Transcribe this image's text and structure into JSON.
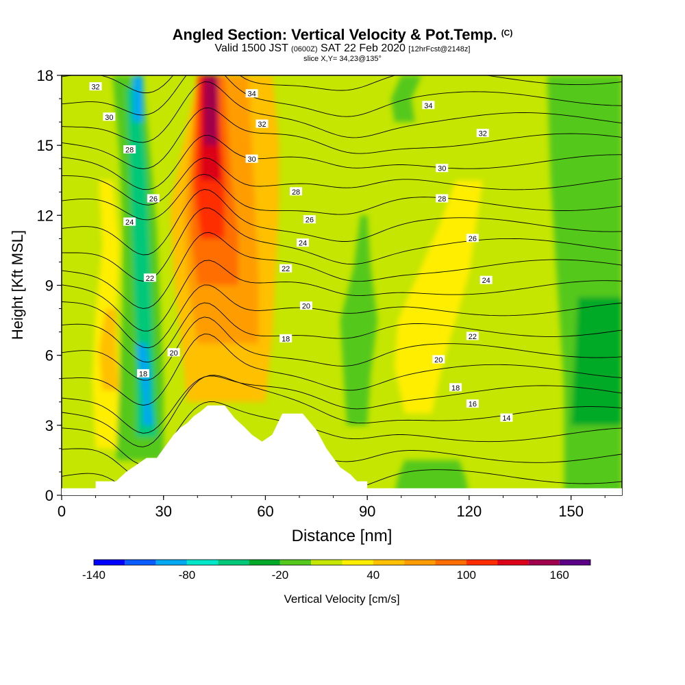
{
  "header": {
    "title": "Angled Section: Vertical Velocity & Pot.Temp.",
    "title_mark": "(C)",
    "valid_prefix": "Valid 1500 JST",
    "valid_utc": "(0600Z)",
    "valid_date": "SAT 22 Feb 2020",
    "forecast_tag": "[12hrFcst@2148z]",
    "slice": "slice X,Y= 34,23@135°"
  },
  "chart_data": {
    "type": "heatmap",
    "xlabel": "Distance [nm]",
    "ylabel": "Height [Kft MSL]",
    "xlim": [
      0,
      165
    ],
    "ylim": [
      0,
      18
    ],
    "x_ticks": [
      0,
      30,
      60,
      90,
      120,
      150
    ],
    "y_ticks": [
      0,
      3,
      6,
      9,
      12,
      15,
      18
    ],
    "colorbar": {
      "label": "Vertical Velocity [cm/s]",
      "min": -140,
      "max": 180,
      "step": 20,
      "tick_values": [
        -140,
        -80,
        -20,
        40,
        100,
        160
      ],
      "colors": [
        "#0000ff",
        "#0a5cff",
        "#00a8f0",
        "#00e6c8",
        "#00c878",
        "#00aa28",
        "#55c81e",
        "#c4e600",
        "#ffee00",
        "#ffc000",
        "#ff9d00",
        "#ff6e00",
        "#ff2d00",
        "#dc0018",
        "#a0004b",
        "#5a0087"
      ]
    },
    "velocity_features": [
      {
        "kind": "downdraft",
        "min_cm_s": -100,
        "x_range_nm": [
          18,
          32
        ],
        "height_kft": [
          2,
          18
        ]
      },
      {
        "kind": "updraft",
        "max_cm_s": 160,
        "x_range_nm": [
          33,
          55
        ],
        "height_kft": [
          6,
          18
        ]
      },
      {
        "kind": "updraft",
        "max_cm_s": 40,
        "x_range_nm": [
          96,
          125
        ],
        "height_kft": [
          5,
          14
        ]
      },
      {
        "kind": "downdraft",
        "min_cm_s": -20,
        "x_range_nm": [
          150,
          165
        ],
        "height_kft": [
          3,
          9
        ]
      }
    ],
    "terrain_profile_kft": [
      [
        10,
        0.6
      ],
      [
        16,
        0.6
      ],
      [
        19,
        1.0
      ],
      [
        22,
        1.3
      ],
      [
        25,
        1.6
      ],
      [
        28,
        1.6
      ],
      [
        30,
        2.0
      ],
      [
        33,
        2.6
      ],
      [
        35,
        2.9
      ],
      [
        37,
        3.1
      ],
      [
        39,
        3.4
      ],
      [
        41,
        3.6
      ],
      [
        43,
        3.85
      ],
      [
        48,
        3.85
      ],
      [
        51,
        3.3
      ],
      [
        54,
        2.9
      ],
      [
        56,
        2.6
      ],
      [
        59,
        2.3
      ],
      [
        62,
        2.6
      ],
      [
        65,
        3.5
      ],
      [
        71,
        3.5
      ],
      [
        75,
        2.8
      ],
      [
        78,
        2.0
      ],
      [
        80,
        1.6
      ],
      [
        82,
        1.2
      ],
      [
        85,
        0.9
      ],
      [
        87,
        0.6
      ],
      [
        90,
        0.6
      ]
    ],
    "isentropes": {
      "label_unit": "",
      "labels": [
        {
          "text": "32",
          "x": 10,
          "y": 17.5
        },
        {
          "text": "30",
          "x": 14,
          "y": 16.2
        },
        {
          "text": "28",
          "x": 20,
          "y": 14.8
        },
        {
          "text": "26",
          "x": 27,
          "y": 12.7
        },
        {
          "text": "24",
          "x": 20,
          "y": 11.7
        },
        {
          "text": "22",
          "x": 26,
          "y": 9.3
        },
        {
          "text": "20",
          "x": 33,
          "y": 6.1
        },
        {
          "text": "18",
          "x": 24,
          "y": 5.2
        },
        {
          "text": "34",
          "x": 56,
          "y": 17.2
        },
        {
          "text": "32",
          "x": 59,
          "y": 15.9
        },
        {
          "text": "30",
          "x": 56,
          "y": 14.4
        },
        {
          "text": "28",
          "x": 69,
          "y": 13.0
        },
        {
          "text": "26",
          "x": 73,
          "y": 11.8
        },
        {
          "text": "24",
          "x": 71,
          "y": 10.8
        },
        {
          "text": "22",
          "x": 66,
          "y": 9.7
        },
        {
          "text": "20",
          "x": 72,
          "y": 8.1
        },
        {
          "text": "18",
          "x": 66,
          "y": 6.7
        },
        {
          "text": "34",
          "x": 108,
          "y": 16.7
        },
        {
          "text": "32",
          "x": 124,
          "y": 15.5
        },
        {
          "text": "30",
          "x": 112,
          "y": 14.0
        },
        {
          "text": "28",
          "x": 112,
          "y": 12.7
        },
        {
          "text": "26",
          "x": 121,
          "y": 11.0
        },
        {
          "text": "24",
          "x": 125,
          "y": 9.2
        },
        {
          "text": "22",
          "x": 121,
          "y": 6.8
        },
        {
          "text": "20",
          "x": 111,
          "y": 5.8
        },
        {
          "text": "18",
          "x": 116,
          "y": 4.6
        },
        {
          "text": "16",
          "x": 121,
          "y": 3.9
        },
        {
          "text": "14",
          "x": 131,
          "y": 3.3
        }
      ]
    }
  }
}
